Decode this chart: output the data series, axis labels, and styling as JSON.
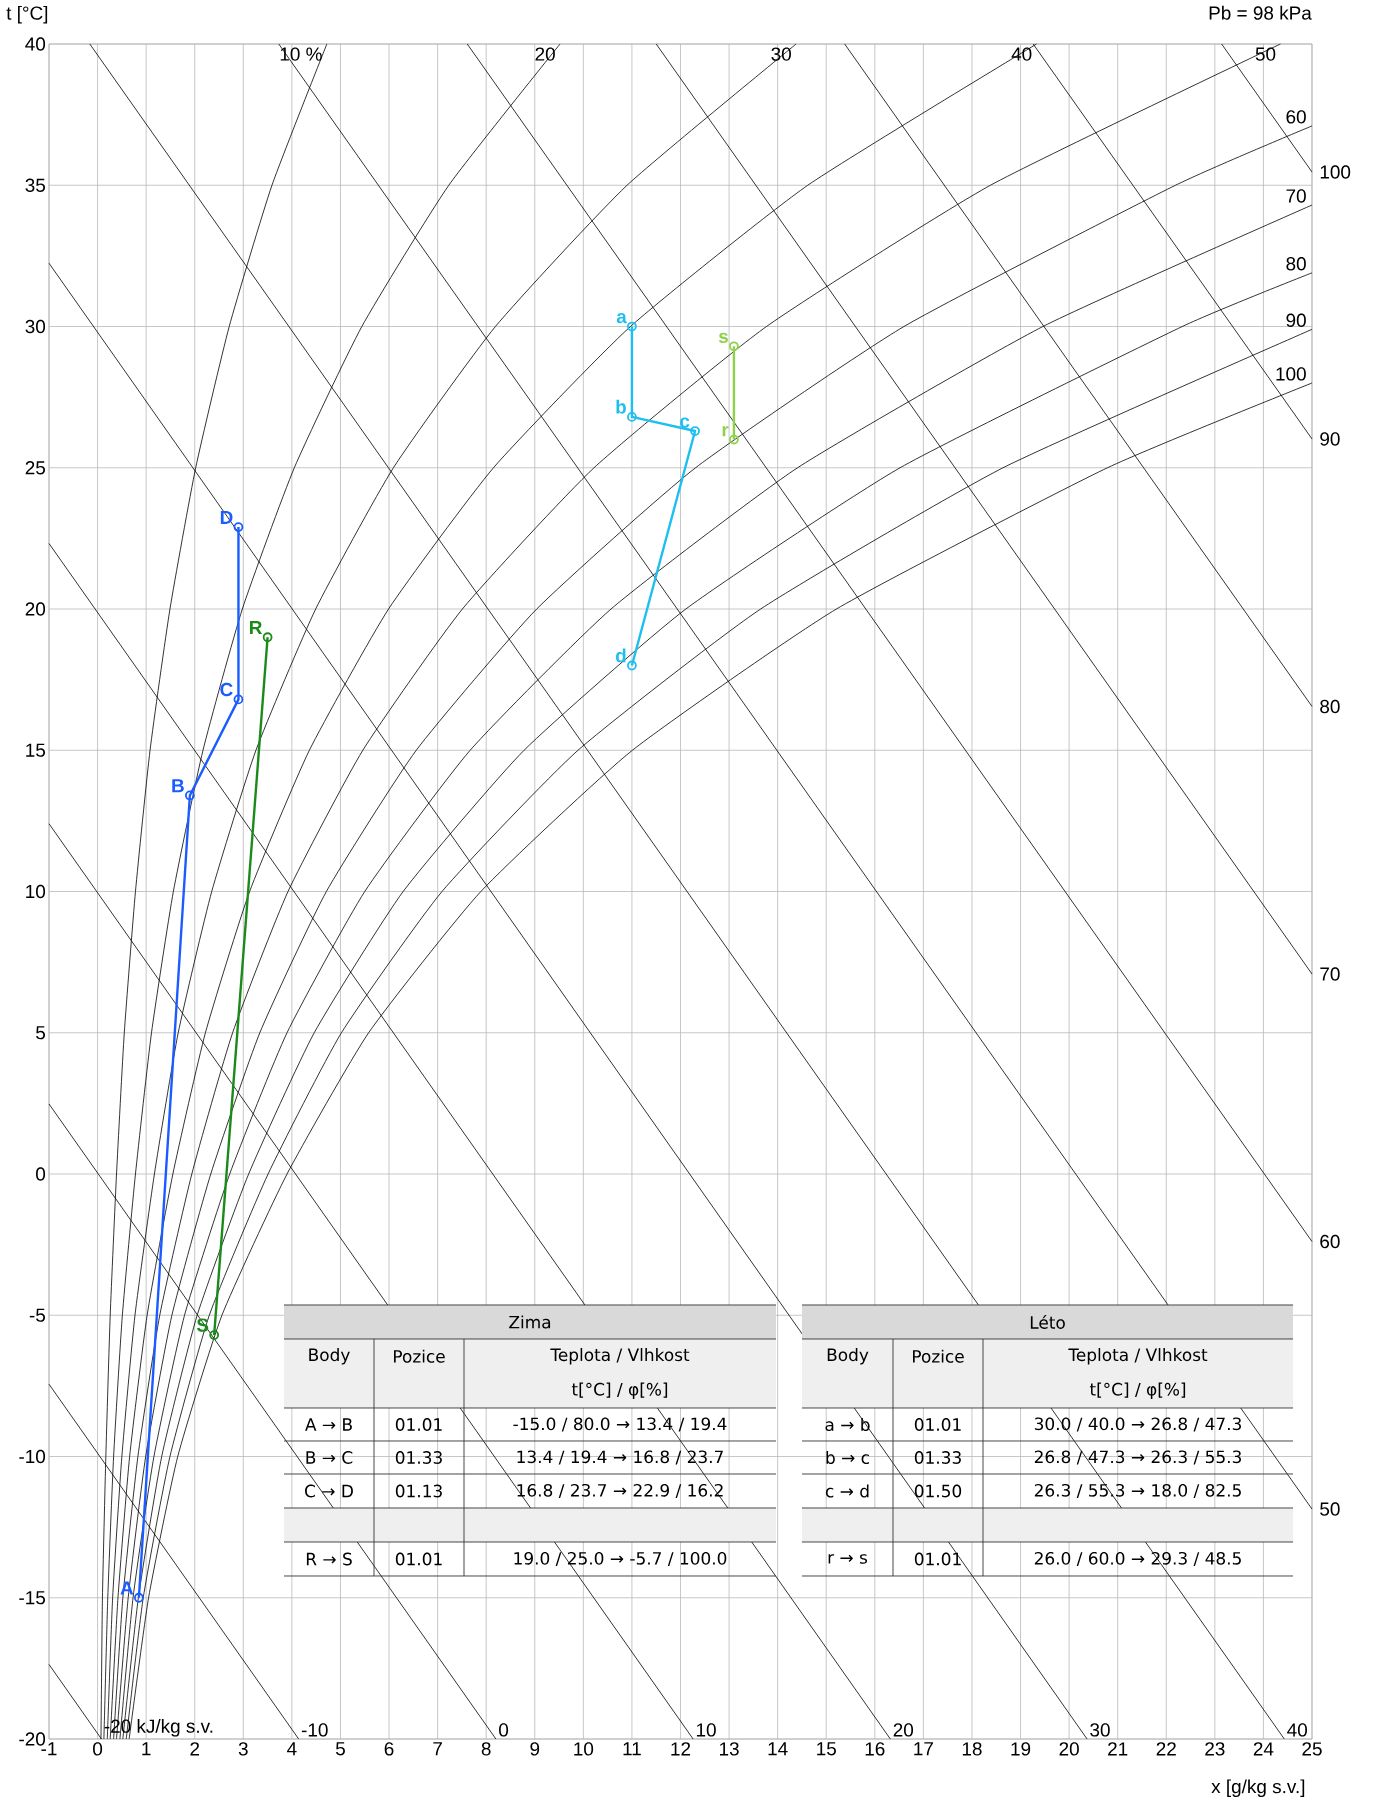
{
  "chart_data": {
    "type": "line",
    "xlabel": "x [g/kg s.v.]",
    "ylabel": "t [°C]",
    "xlim": [
      -1,
      25
    ],
    "ylim": [
      -20,
      40
    ],
    "xticks": [
      -1,
      0,
      1,
      2,
      3,
      4,
      5,
      6,
      7,
      8,
      9,
      10,
      11,
      12,
      13,
      14,
      15,
      16,
      17,
      18,
      19,
      20,
      21,
      22,
      23,
      24,
      25
    ],
    "yticks": [
      -20,
      -15,
      -10,
      -5,
      0,
      5,
      10,
      15,
      20,
      25,
      30,
      35,
      40
    ],
    "grid": true,
    "marker": "none",
    "line_style": "solid",
    "series": [
      {
        "name": "-20 kJ/kg s.v.",
        "color": "#000000",
        "x": [
          -1,
          0.08
        ],
        "values": [
          -17.36,
          -20
        ]
      },
      {
        "name": "-10",
        "color": "#000000",
        "x": [
          -1,
          4.14
        ],
        "values": [
          -7.44,
          -20
        ]
      },
      {
        "name": "0",
        "color": "#000000",
        "x": [
          -1,
          8.2
        ],
        "values": [
          2.48,
          -20
        ]
      },
      {
        "name": "10",
        "color": "#000000",
        "x": [
          -1,
          12.26
        ],
        "values": [
          12.4,
          -20
        ]
      },
      {
        "name": "20",
        "color": "#000000",
        "x": [
          -1,
          16.32
        ],
        "values": [
          22.32,
          -20
        ]
      },
      {
        "name": "30",
        "color": "#000000",
        "x": [
          -1,
          20.37
        ],
        "values": [
          32.24,
          -20
        ]
      },
      {
        "name": "40",
        "color": "#000000",
        "x": [
          -0.16,
          24.43
        ],
        "values": [
          40,
          -20
        ]
      },
      {
        "name": "50",
        "color": "#000000",
        "x": [
          3.73,
          25
        ],
        "values": [
          40,
          -11.86
        ]
      },
      {
        "name": "60",
        "color": "#000000",
        "x": [
          7.61,
          25
        ],
        "values": [
          40,
          -2.39
        ]
      },
      {
        "name": "70",
        "color": "#000000",
        "x": [
          11.5,
          25
        ],
        "values": [
          40,
          7.08
        ]
      },
      {
        "name": "80",
        "color": "#000000",
        "x": [
          15.38,
          25
        ],
        "values": [
          40,
          16.55
        ]
      },
      {
        "name": "90",
        "color": "#000000",
        "x": [
          19.26,
          25
        ],
        "values": [
          40,
          26.02
        ]
      },
      {
        "name": "100",
        "color": "#000000",
        "x": [
          23.14,
          25
        ],
        "values": [
          40,
          35.47
        ]
      },
      {
        "name": "10 %",
        "color": "#000000",
        "x": [
          0.07,
          0.1,
          0.17,
          0.26,
          0.39,
          0.55,
          0.78,
          1.08,
          1.49,
          2.02,
          2.71,
          3.59,
          4.72
        ],
        "values": [
          -20,
          -15,
          -10,
          -5,
          0,
          5,
          10,
          15,
          20,
          25,
          30,
          35,
          40
        ]
      },
      {
        "name": "20",
        "color": "#000000",
        "x": [
          0.13,
          0.21,
          0.33,
          0.51,
          0.78,
          1.11,
          1.56,
          2.17,
          2.98,
          4.05,
          5.44,
          7.23,
          9.52
        ],
        "values": [
          -20,
          -15,
          -10,
          -5,
          0,
          5,
          10,
          15,
          20,
          25,
          30,
          35,
          40
        ]
      },
      {
        "name": "30",
        "color": "#000000",
        "x": [
          0.2,
          0.31,
          0.5,
          0.77,
          1.17,
          1.66,
          2.35,
          3.26,
          4.49,
          6.09,
          8.19,
          10.9,
          14.38
        ],
        "values": [
          -20,
          -15,
          -10,
          -5,
          0,
          5,
          10,
          15,
          20,
          25,
          30,
          35,
          40
        ]
      },
      {
        "name": "40",
        "color": "#000000",
        "x": [
          0.26,
          0.42,
          0.66,
          1.02,
          1.55,
          2.22,
          3.13,
          4.36,
          5.99,
          8.15,
          10.97,
          14.62,
          19.33
        ],
        "values": [
          -20,
          -15,
          -10,
          -5,
          0,
          5,
          10,
          15,
          20,
          25,
          30,
          35,
          40
        ]
      },
      {
        "name": "50",
        "color": "#000000",
        "x": [
          0.33,
          0.52,
          0.83,
          1.28,
          1.94,
          2.78,
          3.92,
          5.46,
          7.51,
          10.22,
          13.77,
          18.38,
          24.35
        ],
        "values": [
          -20,
          -15,
          -10,
          -5,
          0,
          5,
          10,
          15,
          20,
          25,
          30,
          35,
          40
        ]
      },
      {
        "name": "60",
        "color": "#000000",
        "x": [
          0.39,
          0.63,
          0.99,
          1.53,
          2.33,
          3.34,
          4.71,
          6.56,
          9.04,
          12.31,
          16.6,
          22.19,
          25
        ],
        "values": [
          -20,
          -15,
          -10,
          -5,
          0,
          5,
          10,
          15,
          20,
          25,
          30,
          35,
          37.1
        ]
      },
      {
        "name": "70",
        "color": "#000000",
        "x": [
          0.46,
          0.73,
          1.16,
          1.79,
          2.72,
          3.9,
          5.5,
          7.67,
          10.57,
          14.41,
          19.46,
          25
        ],
        "values": [
          -20,
          -15,
          -10,
          -5,
          0,
          5,
          10,
          15,
          20,
          25,
          30,
          34.3
        ]
      },
      {
        "name": "80",
        "color": "#000000",
        "x": [
          0.52,
          0.84,
          1.32,
          2.05,
          3.11,
          4.46,
          6.29,
          8.78,
          12.11,
          16.52,
          22.33,
          25
        ],
        "values": [
          -20,
          -15,
          -10,
          -5,
          0,
          5,
          10,
          15,
          20,
          25,
          30,
          31.9
        ]
      },
      {
        "name": "90",
        "color": "#000000",
        "x": [
          0.59,
          0.94,
          1.49,
          2.3,
          3.51,
          5.02,
          7.09,
          9.89,
          13.65,
          18.64,
          25
        ],
        "values": [
          -20,
          -15,
          -10,
          -5,
          0,
          5,
          10,
          15,
          20,
          25,
          29.9
        ]
      },
      {
        "name": "100",
        "color": "#000000",
        "x": [
          0.65,
          1.05,
          1.65,
          2.56,
          3.9,
          5.58,
          7.89,
          11.01,
          15.21,
          20.79,
          25
        ],
        "values": [
          -20,
          -15,
          -10,
          -5,
          0,
          5,
          10,
          15,
          20,
          25,
          28.0
        ]
      },
      {
        "color": "#1a5cff",
        "marker": "circle",
        "x": [
          0.85,
          1.9,
          2.9,
          2.9
        ],
        "values": [
          -15.0,
          13.4,
          16.8,
          22.9
        ]
      },
      {
        "color": "#1a8a1a",
        "marker": "circle",
        "x": [
          3.5,
          2.4
        ],
        "values": [
          19.0,
          -5.7
        ]
      },
      {
        "color": "#1ebff0",
        "marker": "circle",
        "x": [
          11.0,
          11.0,
          12.3,
          11.0
        ],
        "values": [
          30.0,
          26.8,
          26.3,
          18.0
        ]
      },
      {
        "color": "#8ed14a",
        "marker": "circle",
        "x": [
          13.1,
          13.1
        ],
        "values": [
          26.0,
          29.3
        ]
      }
    ],
    "annotations": [
      "Pb = 98 kPa",
      "Zima",
      "Body",
      "Pozice",
      "Teplota / Vlhkost",
      "t[°C] / φ[%]",
      "A → B",
      "01.01",
      "-15.0 / 80.0 → 13.4 / 19.4",
      "B → C",
      "01.33",
      "13.4 / 19.4 → 16.8 / 23.7",
      "C → D",
      "01.13",
      "16.8 / 23.7 → 22.9 / 16.2",
      "R → S",
      "01.01",
      "19.0 / 25.0 → -5.7 / 100.0",
      "Léto",
      "Body",
      "Pozice",
      "Teplota / Vlhkost",
      "t[°C] / φ[%]",
      "a → b",
      "01.01",
      "30.0 / 40.0 → 26.8 / 47.3",
      "b → c",
      "01.33",
      "26.8 / 47.3 → 26.3 / 55.3",
      "c → d",
      "01.50",
      "26.3 / 55.3 → 18.0 / 82.5",
      "r → s",
      "01.01",
      "26.0 / 60.0 → 29.3 / 48.5",
      {
        "text": "A",
        "x": 0.85,
        "y": -15.0
      },
      {
        "text": "B",
        "x": 1.9,
        "y": 13.4
      },
      {
        "text": "C",
        "x": 2.9,
        "y": 16.8
      },
      {
        "text": "D",
        "x": 2.9,
        "y": 22.9
      },
      {
        "text": "R",
        "x": 3.5,
        "y": 19.0
      },
      {
        "text": "S",
        "x": 2.4,
        "y": -5.7
      },
      {
        "text": "a",
        "x": 11.0,
        "y": 30.0
      },
      {
        "text": "b",
        "x": 11.0,
        "y": 26.8
      },
      {
        "text": "c",
        "x": 12.3,
        "y": 26.3
      },
      {
        "text": "d",
        "x": 11.0,
        "y": 18.0
      },
      {
        "text": "r",
        "x": 13.1,
        "y": 26.0
      },
      {
        "text": "s",
        "x": 13.1,
        "y": 29.3
      }
    ]
  }
}
